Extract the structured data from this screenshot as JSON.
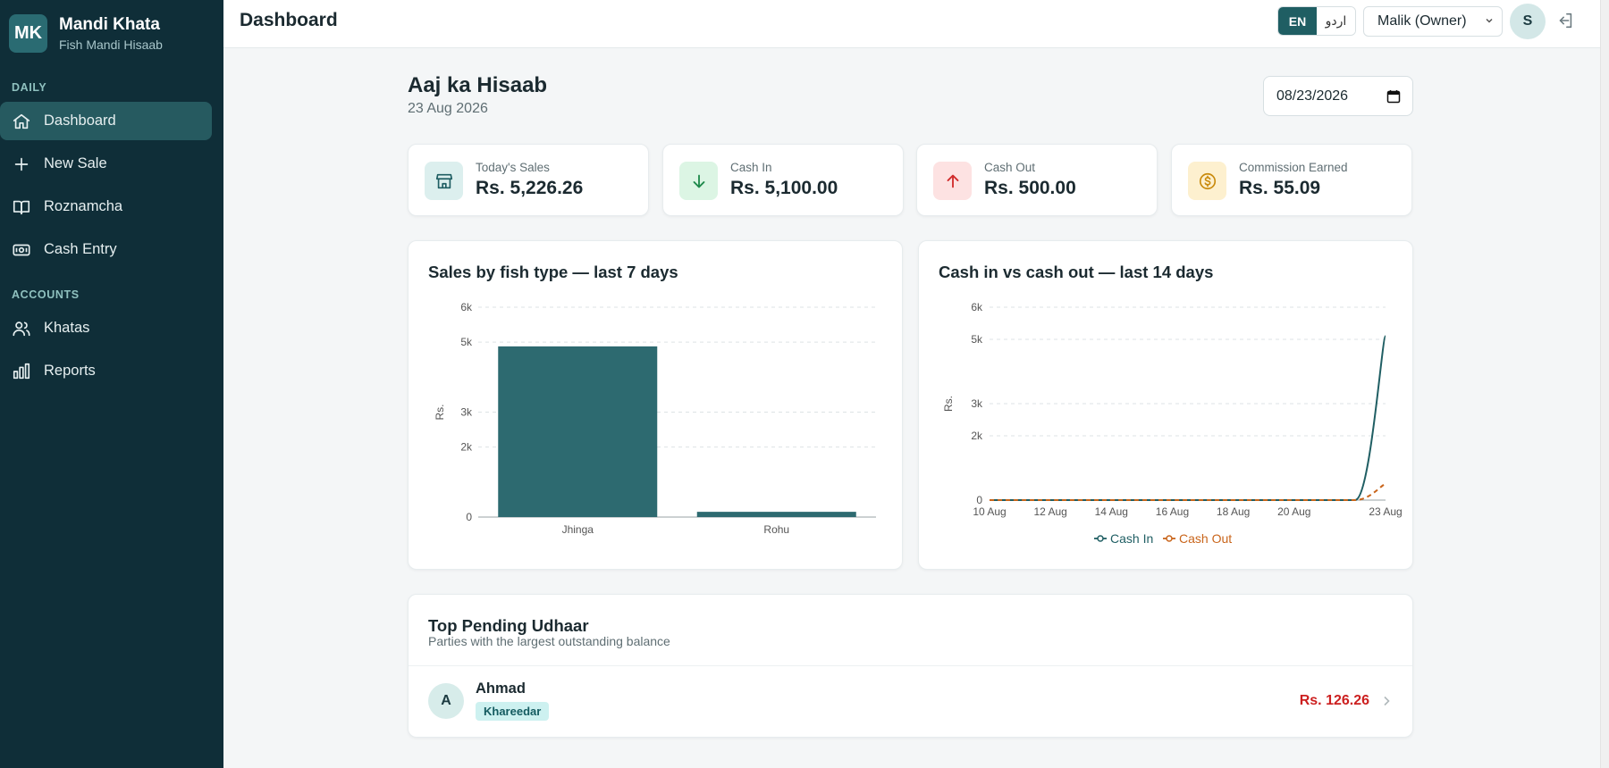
{
  "app": {
    "logo_text": "MK",
    "name": "Mandi Khata",
    "subtitle": "Fish Mandi Hisaab"
  },
  "sidebar": {
    "sections": [
      {
        "label": "DAILY"
      },
      {
        "label": "ACCOUNTS"
      }
    ],
    "items": [
      {
        "label": "Dashboard",
        "icon": "home-icon",
        "active": true
      },
      {
        "label": "New Sale",
        "icon": "plus-icon"
      },
      {
        "label": "Roznamcha",
        "icon": "book-icon"
      },
      {
        "label": "Cash Entry",
        "icon": "cash-icon"
      },
      {
        "label": "Khatas",
        "icon": "users-icon"
      },
      {
        "label": "Reports",
        "icon": "bar-chart-icon"
      }
    ]
  },
  "header": {
    "title": "Dashboard",
    "lang_en": "EN",
    "lang_ur": "اردو",
    "role": "Malik (Owner)",
    "user_initial": "S"
  },
  "main": {
    "title": "Aaj ka Hisaab",
    "date_text": "23 Aug 2026",
    "date_input": "08/23/2026"
  },
  "stats": [
    {
      "label": "Today's Sales",
      "value": "Rs. 5,226.26",
      "icon": "store-icon",
      "bg": "#dcefee",
      "fg": "#1f5e63"
    },
    {
      "label": "Cash In",
      "value": "Rs. 5,100.00",
      "icon": "arrow-down-icon",
      "bg": "#dcf5e4",
      "fg": "#1f8a4c"
    },
    {
      "label": "Cash Out",
      "value": "Rs. 500.00",
      "icon": "arrow-up-icon",
      "bg": "#fde2e2",
      "fg": "#d12c2c"
    },
    {
      "label": "Commission Earned",
      "value": "Rs. 55.09",
      "icon": "coin-icon",
      "bg": "#fdf0cf",
      "fg": "#c98a0b"
    }
  ],
  "charts": {
    "sales_title": "Sales by fish type — last 7 days",
    "cash_title": "Cash in vs cash out — last 14 days"
  },
  "chart_data": [
    {
      "type": "bar",
      "title": "Sales by fish type — last 7 days",
      "categories": [
        "Jhinga",
        "Rohu"
      ],
      "values": [
        4880,
        150
      ],
      "ylabel": "Rs.",
      "ylim": [
        0,
        6000
      ],
      "yticks": [
        "0",
        "2k",
        "3k",
        "5k",
        "6k"
      ],
      "grid": true,
      "color": "#2d6a70"
    },
    {
      "type": "line",
      "title": "Cash in vs cash out — last 14 days",
      "x": [
        "10 Aug",
        "11 Aug",
        "12 Aug",
        "13 Aug",
        "14 Aug",
        "15 Aug",
        "16 Aug",
        "17 Aug",
        "18 Aug",
        "19 Aug",
        "20 Aug",
        "21 Aug",
        "22 Aug",
        "23 Aug"
      ],
      "xticks": [
        "10 Aug",
        "12 Aug",
        "14 Aug",
        "16 Aug",
        "18 Aug",
        "20 Aug",
        "23 Aug"
      ],
      "ylabel": "Rs.",
      "ylim": [
        0,
        6000
      ],
      "yticks": [
        "0",
        "2k",
        "3k",
        "5k",
        "6k"
      ],
      "grid": true,
      "legend": "bottom",
      "series": [
        {
          "name": "Cash In",
          "values": [
            0,
            0,
            0,
            0,
            0,
            0,
            0,
            0,
            0,
            0,
            0,
            0,
            0,
            5100
          ],
          "color": "#1f5e63",
          "dashed": false
        },
        {
          "name": "Cash Out",
          "values": [
            0,
            0,
            0,
            0,
            0,
            0,
            0,
            0,
            0,
            0,
            0,
            0,
            0,
            500
          ],
          "color": "#c9651b",
          "dashed": true
        }
      ]
    }
  ],
  "udhaar": {
    "title": "Top Pending Udhaar",
    "subtitle": "Parties with the largest outstanding balance",
    "rows": [
      {
        "initial": "A",
        "name": "Ahmad",
        "badge": "Khareedar",
        "amount": "Rs. 126.26"
      }
    ]
  }
}
